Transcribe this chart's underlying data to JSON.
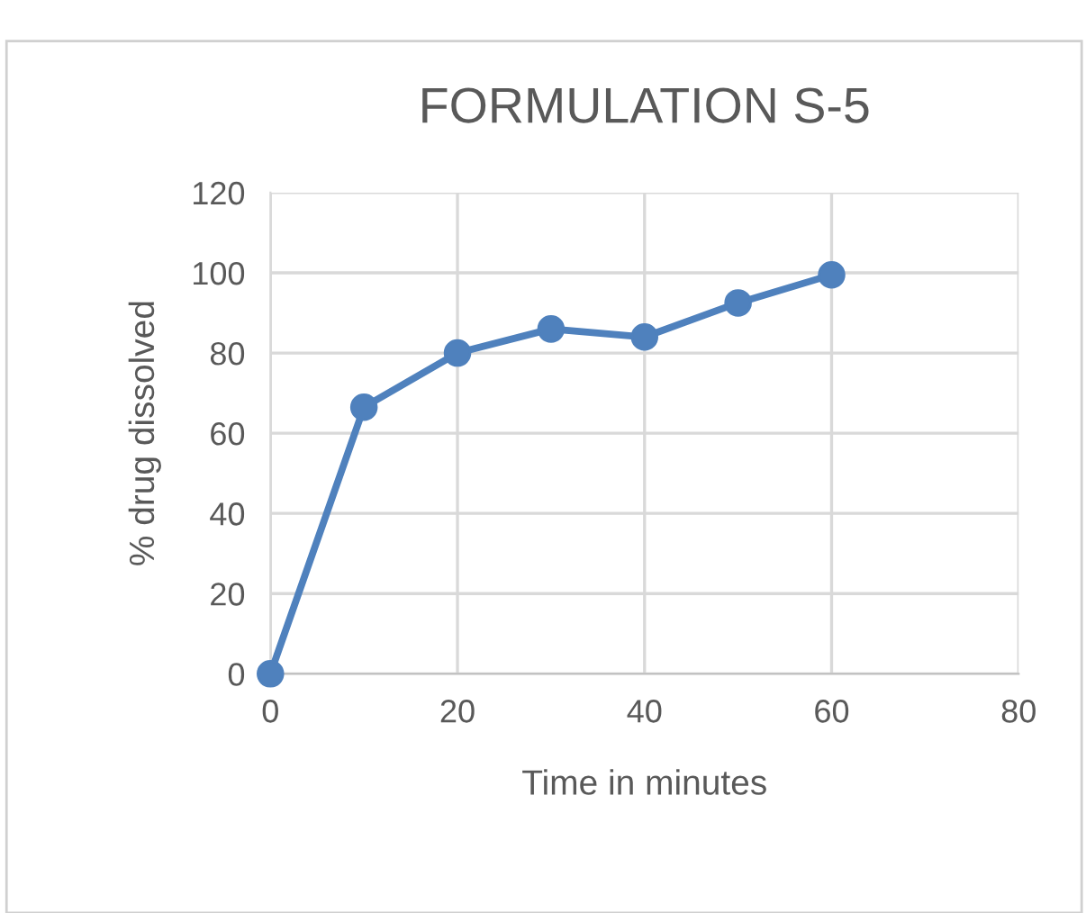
{
  "chart_data": {
    "type": "line",
    "title": "FORMULATION S-5",
    "xlabel": "Time in minutes",
    "ylabel": "% drug dissolved",
    "x": [
      0,
      10,
      20,
      30,
      40,
      50,
      60
    ],
    "series": [
      {
        "color": "#4f81bd",
        "values": [
          0,
          66.5,
          80,
          86,
          84,
          92.5,
          99.5
        ]
      }
    ],
    "xlim": [
      0,
      80
    ],
    "xticks": [
      0,
      20,
      40,
      60,
      80
    ],
    "ylim": [
      0,
      120
    ],
    "yticks": [
      0,
      20,
      40,
      60,
      80,
      100,
      120
    ],
    "grid": true,
    "marker": "circle",
    "line_style": "solid",
    "legend": false
  }
}
